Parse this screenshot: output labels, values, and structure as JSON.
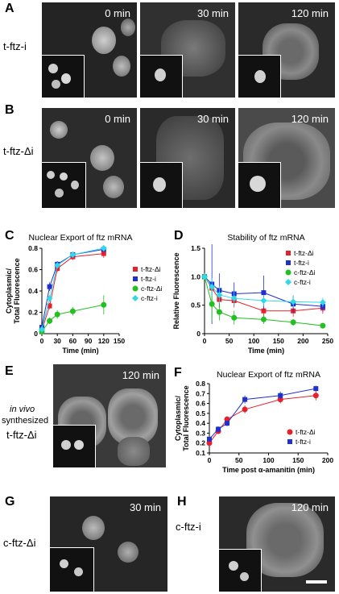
{
  "panels": {
    "A": {
      "letter": "A",
      "label": "t-ftz-i",
      "times": [
        "0 min",
        "30 min",
        "120 min"
      ]
    },
    "B": {
      "letter": "B",
      "label": "t-ftz-Δi",
      "times": [
        "0 min",
        "30 min",
        "120 min"
      ]
    },
    "C": {
      "letter": "C"
    },
    "D": {
      "letter": "D"
    },
    "E": {
      "letter": "E",
      "label_line1": "in vivo",
      "label_line2": "synthesized",
      "label_line3": "t-ftz-Δi",
      "time": "120 min"
    },
    "F": {
      "letter": "F"
    },
    "G": {
      "letter": "G",
      "label": "c-ftz-Δi",
      "time": "30 min"
    },
    "H": {
      "letter": "H",
      "label": "c-ftz-i",
      "time": "120 min"
    }
  },
  "chart_data": [
    {
      "id": "C",
      "type": "line",
      "title": "Nuclear Export of ftz mRNA",
      "xlabel": "Time (min)",
      "ylabel": "Cytoplasmic/ Total Fluorescence",
      "xlim": [
        0,
        150
      ],
      "ylim": [
        0,
        0.8
      ],
      "xticks": [
        0,
        30,
        60,
        90,
        120,
        150
      ],
      "yticks": [
        0,
        0.2,
        0.4,
        0.6,
        0.8
      ],
      "ytick_labels": [
        "0",
        "0.2",
        "0.4",
        "0.6",
        "0.8"
      ],
      "legend_position": "right",
      "series": [
        {
          "name": "t-ftz-Δi",
          "color": "#e8202a",
          "marker": "square",
          "x": [
            0,
            15,
            30,
            60,
            120
          ],
          "y": [
            0.03,
            0.26,
            0.61,
            0.72,
            0.75
          ],
          "err": [
            0.02,
            0.03,
            0.03,
            0.03,
            0.04
          ]
        },
        {
          "name": "t-ftz-i",
          "color": "#2030d0",
          "marker": "square",
          "x": [
            0,
            15,
            30,
            60,
            120
          ],
          "y": [
            0.06,
            0.44,
            0.65,
            0.74,
            0.79
          ],
          "err": [
            0.02,
            0.04,
            0.03,
            0.03,
            0.03
          ]
        },
        {
          "name": "c-ftz-Δi",
          "color": "#22c020",
          "marker": "circle",
          "x": [
            0,
            15,
            30,
            60,
            120
          ],
          "y": [
            0.02,
            0.12,
            0.18,
            0.21,
            0.27
          ],
          "err": [
            0.02,
            0.03,
            0.04,
            0.04,
            0.09
          ]
        },
        {
          "name": "c-ftz-i",
          "color": "#30d8e8",
          "marker": "diamond",
          "x": [
            0,
            15,
            30,
            60,
            120
          ],
          "y": [
            0.04,
            0.33,
            0.64,
            0.74,
            0.8
          ],
          "err": [
            0.02,
            0.03,
            0.03,
            0.03,
            0.03
          ]
        }
      ]
    },
    {
      "id": "D",
      "type": "line",
      "title": "Stability of ftz mRNA",
      "xlabel": "Time (min)",
      "ylabel": "Relative Fluorescence",
      "xlim": [
        0,
        250
      ],
      "ylim": [
        0,
        1.5
      ],
      "xticks": [
        0,
        50,
        100,
        150,
        200,
        250
      ],
      "yticks": [
        0,
        0.5,
        1.0,
        1.5
      ],
      "ytick_labels": [
        "0",
        "0.5",
        "1.0",
        "1.5"
      ],
      "legend_position": "top-right",
      "series": [
        {
          "name": "t-ftz-Δi",
          "color": "#e8202a",
          "marker": "square",
          "x": [
            0,
            15,
            30,
            60,
            120,
            180,
            240
          ],
          "y": [
            1.0,
            0.8,
            0.6,
            0.58,
            0.4,
            0.4,
            0.45
          ],
          "err": [
            0.05,
            0.12,
            0.15,
            0.12,
            0.12,
            0.1,
            0.1
          ]
        },
        {
          "name": "t-ftz-i",
          "color": "#2030d0",
          "marker": "square",
          "x": [
            0,
            15,
            30,
            60,
            120,
            180,
            240
          ],
          "y": [
            1.0,
            0.87,
            0.76,
            0.7,
            0.72,
            0.52,
            0.48
          ],
          "err": [
            0.05,
            0.7,
            0.3,
            0.2,
            0.3,
            0.15,
            0.1
          ]
        },
        {
          "name": "c-ftz-Δi",
          "color": "#22c020",
          "marker": "circle",
          "x": [
            0,
            15,
            30,
            60,
            120,
            180,
            240
          ],
          "y": [
            1.0,
            0.52,
            0.38,
            0.28,
            0.25,
            0.2,
            0.14
          ],
          "err": [
            0.05,
            0.3,
            0.15,
            0.12,
            0.08,
            0.06,
            0.05
          ]
        },
        {
          "name": "c-ftz-i",
          "color": "#30d8e8",
          "marker": "diamond",
          "x": [
            0,
            15,
            30,
            60,
            120,
            180,
            240
          ],
          "y": [
            1.0,
            0.82,
            0.68,
            0.62,
            0.58,
            0.56,
            0.55
          ],
          "err": [
            0.05,
            0.15,
            0.15,
            0.12,
            0.1,
            0.1,
            0.08
          ]
        }
      ]
    },
    {
      "id": "F",
      "type": "line",
      "title": "Nuclear Export of ftz mRNA",
      "xlabel": "Time post α-amanitin (min)",
      "ylabel": "Cytoplasmic/ Total Fluorescence",
      "xlim": [
        0,
        200
      ],
      "ylim": [
        0.1,
        0.8
      ],
      "xticks": [
        0,
        50,
        100,
        150,
        200
      ],
      "yticks": [
        0.1,
        0.2,
        0.3,
        0.4,
        0.5,
        0.6,
        0.7,
        0.8
      ],
      "ytick_labels": [
        "0.1",
        "0.2",
        "0.3",
        "0.4",
        "0.5",
        "0.6",
        "0.7",
        "0.8"
      ],
      "legend_position": "bottom-right",
      "series": [
        {
          "name": "t-ftz-Δi",
          "color": "#e8202a",
          "marker": "circle",
          "x": [
            0,
            15,
            30,
            60,
            120,
            180
          ],
          "y": [
            0.2,
            0.32,
            0.44,
            0.54,
            0.64,
            0.68
          ],
          "err": [
            0.03,
            0.03,
            0.03,
            0.04,
            0.04,
            0.05
          ]
        },
        {
          "name": "t-ftz-i",
          "color": "#2030d0",
          "marker": "square",
          "x": [
            0,
            15,
            30,
            60,
            120,
            180
          ],
          "y": [
            0.24,
            0.34,
            0.4,
            0.64,
            0.68,
            0.75
          ],
          "err": [
            0.03,
            0.03,
            0.03,
            0.04,
            0.04,
            0.03
          ]
        }
      ]
    }
  ]
}
